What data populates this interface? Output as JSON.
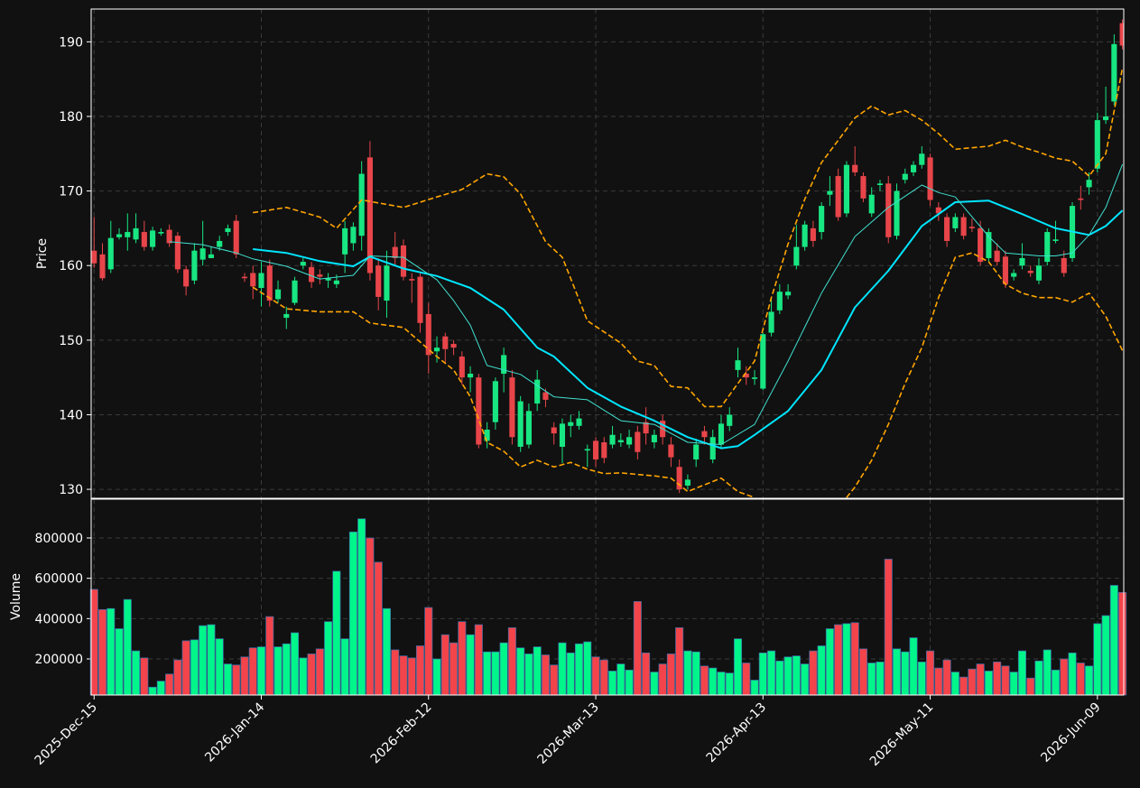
{
  "chart_data": [
    {
      "type": "candlestick",
      "ylabel": "Price",
      "ylim": [
        128.8,
        194.4
      ],
      "yticks": [
        130,
        140,
        150,
        160,
        170,
        180,
        190
      ],
      "xlim": [
        -0.35,
        123.15
      ],
      "grid": true,
      "up_color": "#18e682",
      "down_color": "#e8454a",
      "open": [
        162,
        161.5,
        159.5,
        163.8,
        163.8,
        163.5,
        164.5,
        162.5,
        164.3,
        164.8,
        164,
        159.5,
        158,
        160.8,
        161,
        162.5,
        164.5,
        166,
        158.5,
        159,
        157,
        160,
        155.5,
        153,
        155,
        160,
        159.8,
        158.8,
        158,
        157.5,
        161.5,
        163,
        164,
        174.5,
        160,
        155.3,
        162.5,
        162.7,
        158.2,
        158.5,
        153.5,
        148.5,
        150.5,
        149.5,
        147.8,
        145,
        145,
        136.5,
        139,
        145.5,
        145,
        135.7,
        136,
        141.5,
        143,
        138.3,
        135.7,
        138.5,
        138.5,
        135.2,
        136.5,
        136.3,
        136,
        136.3,
        136,
        137.7,
        139,
        136.3,
        139.2,
        136,
        133,
        130.5,
        134,
        137.8,
        134,
        136,
        138.5,
        146,
        145.5,
        144.8,
        143.5,
        151,
        154,
        156,
        160,
        162.5,
        165,
        164.5,
        169.5,
        172,
        167,
        173.5,
        172,
        167,
        170.8,
        171,
        164,
        171.5,
        172.5,
        173.5,
        174.5,
        167.8,
        166.5,
        165,
        166.5,
        165.2,
        165,
        161,
        162,
        161.2,
        158.5,
        160,
        159.3,
        158,
        160.5,
        163.3,
        161,
        161,
        169,
        170.5,
        173,
        179.5,
        182,
        192.5
      ],
      "high": [
        166.5,
        163,
        166,
        165,
        167,
        167,
        166,
        165.2,
        165,
        165.5,
        164.5,
        160,
        163,
        166,
        162.5,
        164,
        165.5,
        166.8,
        159,
        160,
        160.5,
        160.8,
        158,
        154.5,
        158.5,
        161,
        160.5,
        159.5,
        159,
        158.8,
        166,
        165.8,
        174,
        176.7,
        161,
        162,
        164.5,
        163.5,
        159,
        159,
        155,
        150.5,
        151,
        150,
        148.5,
        146.5,
        145.5,
        139,
        145,
        149,
        146,
        142.5,
        141.5,
        146,
        143.5,
        139,
        139.5,
        140,
        140.5,
        136,
        137,
        137,
        138.5,
        137.5,
        138,
        138.5,
        141,
        138,
        140,
        137,
        134,
        132,
        136.8,
        138.5,
        138,
        140,
        141,
        149,
        146.5,
        146,
        151,
        155.5,
        157.5,
        157.5,
        165.5,
        166,
        166,
        168.5,
        172,
        173,
        174,
        176,
        172.5,
        170.5,
        171.5,
        172,
        171,
        173,
        174,
        176,
        175,
        168.5,
        167,
        167,
        167,
        166.3,
        166,
        165,
        163,
        162,
        159.5,
        163,
        160,
        161,
        165,
        166,
        162,
        168.5,
        170.7,
        172.5,
        180.5,
        184,
        191,
        193
      ],
      "low": [
        159.7,
        158,
        159,
        163.5,
        162,
        163,
        162,
        162,
        164,
        162.5,
        159,
        156,
        157.5,
        160,
        161,
        162,
        164,
        161,
        157.8,
        155.5,
        154.5,
        154.5,
        155,
        151.5,
        154.7,
        159.5,
        157,
        157.5,
        157,
        157,
        159,
        162,
        162,
        158,
        154,
        153,
        160,
        158,
        155,
        151,
        145.5,
        147,
        147,
        148,
        144,
        143,
        135.5,
        135.5,
        138,
        143,
        136,
        135,
        135.5,
        140.5,
        141,
        136,
        133.5,
        137,
        138,
        133,
        133,
        133.5,
        135.5,
        135.7,
        135.5,
        134,
        136,
        135.5,
        136,
        133,
        129.5,
        130,
        133,
        136,
        133.5,
        135.5,
        137.8,
        145,
        144,
        144,
        143.3,
        150.5,
        153.5,
        155.5,
        159.5,
        162,
        162.5,
        163.5,
        168,
        166,
        166.5,
        172,
        168.5,
        166.5,
        170,
        163,
        163.5,
        171,
        172,
        173,
        168,
        166,
        162.5,
        164.5,
        163.5,
        164.5,
        160,
        160.5,
        160,
        157,
        158,
        159.5,
        158.5,
        157.5,
        160,
        163,
        158.5,
        160.5,
        167.5,
        169.5,
        172.5,
        179,
        181.5,
        189
      ],
      "close": [
        160.3,
        158.3,
        163.7,
        164.2,
        164.5,
        165,
        162.5,
        164.7,
        164.5,
        163,
        159.5,
        157.2,
        162,
        162.3,
        161.5,
        163.3,
        165,
        161.5,
        158.3,
        157.2,
        159,
        155.3,
        156.8,
        153.5,
        158,
        160.5,
        157.8,
        158.5,
        158.3,
        158,
        165,
        165.2,
        172.3,
        159,
        155.8,
        160,
        161,
        158.5,
        158,
        152.3,
        148,
        149,
        148.8,
        149,
        145,
        145.5,
        136,
        138,
        144.5,
        148,
        137,
        141.8,
        140.5,
        144.7,
        142,
        137.5,
        138.8,
        139,
        139.5,
        135.4,
        134,
        134.2,
        137.3,
        136.6,
        137,
        135,
        137.5,
        137.3,
        137,
        134.3,
        130,
        131.3,
        136,
        137,
        137,
        138.8,
        140,
        147.3,
        145,
        145,
        150.8,
        153.8,
        156.5,
        156.5,
        162.5,
        165.5,
        163.3,
        168,
        170,
        166.5,
        173.5,
        172.5,
        169,
        169.5,
        171,
        163.8,
        170,
        172.3,
        173.5,
        175,
        168.8,
        167,
        163.3,
        166.5,
        164,
        165,
        160.5,
        164.5,
        160.5,
        157.5,
        159,
        161,
        159,
        160,
        164.5,
        163.5,
        159,
        168,
        168.8,
        171.5,
        179.5,
        180,
        189.7,
        189.5
      ],
      "lines": [
        {
          "color": "#00e5ff",
          "width": 2,
          "dash": false,
          "x": [
            19,
            23,
            27,
            31,
            33,
            37,
            41,
            45,
            49,
            53,
            55,
            59,
            63,
            67,
            71,
            75,
            77,
            79,
            83,
            87,
            91,
            95,
            99,
            103,
            107,
            111,
            115,
            119,
            121,
            123
          ],
          "values": [
            162.2,
            161.7,
            160.6,
            159.9,
            161.2,
            159.6,
            158.6,
            157,
            154.1,
            149,
            147.8,
            143.6,
            141.1,
            139.2,
            137,
            135.5,
            135.8,
            137.3,
            140.5,
            146,
            154.4,
            159.3,
            165.3,
            168.5,
            168.7,
            166.9,
            165,
            164.1,
            165.3,
            167.4
          ]
        },
        {
          "color": "#40e0d0",
          "width": 1,
          "dash": false,
          "x": [
            9,
            13,
            17,
            19,
            23,
            27,
            31,
            33,
            37,
            41,
            43,
            45,
            47,
            51,
            55,
            59,
            63,
            67,
            71,
            75,
            79,
            83,
            87,
            91,
            95,
            99,
            101,
            103,
            107,
            109,
            113,
            115,
            117,
            119,
            121,
            123
          ],
          "values": [
            163.2,
            162.8,
            161.7,
            160.9,
            159.9,
            158.2,
            158.7,
            161.3,
            161.1,
            158.1,
            155.3,
            152,
            146.6,
            145.4,
            142.4,
            142,
            139.2,
            138.7,
            136.3,
            136,
            138.7,
            147.2,
            156.3,
            163.9,
            167.8,
            170.8,
            169.8,
            169.2,
            163.9,
            161.7,
            161.3,
            161.3,
            161.7,
            164.1,
            167.8,
            173.6
          ]
        },
        {
          "color": "#ffa500",
          "width": 1.6,
          "dash": true,
          "x": [
            19,
            23,
            27,
            29,
            32,
            37,
            41,
            44,
            47,
            49,
            51,
            54,
            56,
            59,
            63,
            65,
            67,
            69,
            71,
            73,
            75,
            77,
            79,
            81,
            83,
            85,
            87,
            89,
            91,
            93,
            95,
            97,
            99,
            101,
            103,
            107,
            109,
            111,
            113,
            115,
            117,
            119,
            121,
            123
          ],
          "values": [
            167.1,
            167.8,
            166.5,
            165,
            168.8,
            167.8,
            169.2,
            170.2,
            172.3,
            171.9,
            169.6,
            163.2,
            161.1,
            152.6,
            149.6,
            147.2,
            146.6,
            143.8,
            143.6,
            141.1,
            141.1,
            144.2,
            147.2,
            155.7,
            162.9,
            168.9,
            173.8,
            176.8,
            179.8,
            181.4,
            180.2,
            180.8,
            179.5,
            177.7,
            175.6,
            176,
            176.8,
            175.9,
            175.2,
            174.4,
            174,
            172,
            175,
            186.5
          ]
        },
        {
          "color": "#ffa500",
          "width": 1.6,
          "dash": true,
          "x": [
            19,
            23,
            27,
            31,
            33,
            37,
            41,
            43,
            45,
            47,
            49,
            51,
            53,
            55,
            57,
            59,
            61,
            63,
            65,
            67,
            69,
            71,
            73,
            75,
            77,
            79,
            81,
            90,
            91,
            93,
            95,
            97,
            99,
            101,
            103,
            105,
            107,
            109,
            111,
            113,
            115,
            117,
            119,
            121,
            123
          ],
          "values": [
            157.1,
            154.2,
            153.8,
            153.8,
            152.3,
            151.7,
            147.8,
            146,
            142.4,
            136.3,
            135.1,
            133,
            133.9,
            133,
            133.6,
            132.7,
            132.1,
            132.2,
            132,
            131.8,
            131.5,
            129.7,
            130.6,
            131.5,
            129.7,
            128.9,
            null,
            128.9,
            130.3,
            133.9,
            138.7,
            144.2,
            149,
            155.7,
            161.1,
            161.7,
            160.5,
            157.5,
            156.3,
            155.7,
            155.7,
            155.1,
            156.3,
            153.2,
            148.6
          ]
        }
      ]
    },
    {
      "type": "bar",
      "ylabel": "Volume",
      "ylim": [
        21000,
        992500
      ],
      "yticks": [
        200000,
        400000,
        600000,
        800000
      ],
      "xlim": [
        -0.35,
        123.15
      ],
      "grid": true,
      "up_color": "#00f58a",
      "down_color": "#f2444a",
      "xticks": [
        {
          "value": 0,
          "label": "2025-Dec-15"
        },
        {
          "value": 20,
          "label": "2026-Jan-14"
        },
        {
          "value": 40,
          "label": "2026-Feb-12"
        },
        {
          "value": 60,
          "label": "2026-Mar-13"
        },
        {
          "value": 80,
          "label": "2026-Apr-13"
        },
        {
          "value": 100,
          "label": "2026-May-11"
        },
        {
          "value": 120,
          "label": "2026-Jun-09"
        }
      ],
      "values": [
        545000,
        445000,
        450000,
        350000,
        495000,
        240000,
        205000,
        60000,
        90000,
        125000,
        195000,
        290000,
        295000,
        365000,
        370000,
        300000,
        175000,
        170000,
        210000,
        255000,
        260000,
        410000,
        260000,
        275000,
        330000,
        205000,
        225000,
        250000,
        385000,
        635000,
        300000,
        830000,
        895000,
        800000,
        680000,
        450000,
        245000,
        215000,
        205000,
        265000,
        455000,
        200000,
        320000,
        280000,
        385000,
        320000,
        370000,
        235000,
        235000,
        280000,
        355000,
        255000,
        225000,
        260000,
        220000,
        170000,
        280000,
        230000,
        275000,
        285000,
        210000,
        195000,
        140000,
        175000,
        145000,
        485000,
        230000,
        135000,
        175000,
        225000,
        355000,
        240000,
        235000,
        165000,
        155000,
        135000,
        130000,
        300000,
        180000,
        95000,
        230000,
        240000,
        190000,
        210000,
        215000,
        175000,
        240000,
        265000,
        350000,
        370000,
        375000,
        380000,
        250000,
        180000,
        185000,
        695000,
        250000,
        235000,
        305000,
        185000,
        240000,
        155000,
        195000,
        135000,
        110000,
        150000,
        175000,
        140000,
        185000,
        165000,
        135000,
        240000,
        105000,
        190000,
        245000,
        145000,
        200000,
        230000,
        180000,
        165000,
        375000,
        415000,
        565000,
        530000
      ]
    }
  ]
}
